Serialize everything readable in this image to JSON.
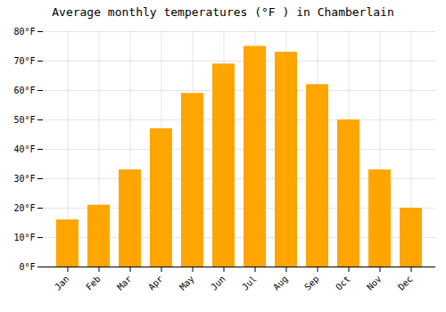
{
  "chart_data": {
    "type": "bar",
    "title": "Average monthly temperatures (°F ) in Chamberlain",
    "categories": [
      "Jan",
      "Feb",
      "Mar",
      "Apr",
      "May",
      "Jun",
      "Jul",
      "Aug",
      "Sep",
      "Oct",
      "Nov",
      "Dec"
    ],
    "values": [
      16,
      21,
      33,
      47,
      59,
      69,
      75,
      73,
      62,
      50,
      33,
      20
    ],
    "color": "#FFA500",
    "ylim": [
      0,
      80
    ],
    "yticks": [
      {
        "value": 0,
        "label": "0°F"
      },
      {
        "value": 10,
        "label": "10°F"
      },
      {
        "value": 20,
        "label": "20°F"
      },
      {
        "value": 30,
        "label": "30°F"
      },
      {
        "value": 40,
        "label": "40°F"
      },
      {
        "value": 50,
        "label": "50°F"
      },
      {
        "value": 60,
        "label": "60°F"
      },
      {
        "value": 70,
        "label": "70°F"
      },
      {
        "value": 80,
        "label": "80°F"
      }
    ],
    "grid": true
  }
}
